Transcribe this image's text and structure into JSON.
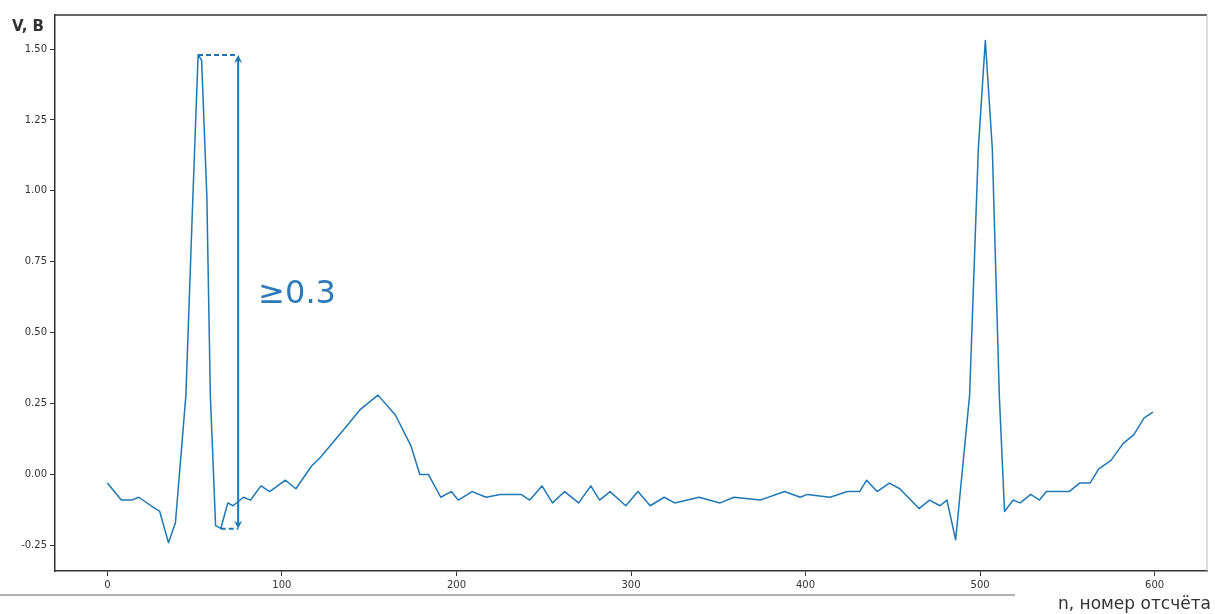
{
  "chart_data": {
    "type": "line",
    "xlabel": "n, номер отсчёта",
    "ylabel": "V, В",
    "xlim": [
      -30,
      630
    ],
    "xticks": [
      0,
      100,
      200,
      300,
      400,
      500,
      600
    ],
    "ylim": [
      -0.34,
      1.62
    ],
    "yticks": [
      {
        "value": -0.25,
        "label": "-0.25"
      },
      {
        "value": 0,
        "label": "0.00"
      },
      {
        "value": 0.25,
        "label": "0.25"
      },
      {
        "value": 0.5,
        "label": "0.50"
      },
      {
        "value": 0.75,
        "label": "0.75"
      },
      {
        "value": 1,
        "label": "1.00"
      },
      {
        "value": 1.25,
        "label": "1.25"
      },
      {
        "value": 1.5,
        "label": "1.50"
      }
    ],
    "marker": "none",
    "line_style": "solid",
    "legend": false,
    "annotations": [
      "≥0.3"
    ],
    "series": [
      {
        "color": "#1f77b4",
        "x": [
          0,
          8,
          14,
          18,
          25,
          30,
          35,
          39,
          45,
          49,
          52,
          54,
          57,
          59,
          62,
          65,
          69,
          72,
          78,
          82,
          88,
          93,
          102,
          108,
          117,
          122,
          137,
          145,
          155,
          165,
          174,
          179,
          184,
          191,
          197,
          201,
          209,
          217,
          225,
          237,
          242,
          249,
          255,
          262,
          270,
          277,
          282,
          288,
          297,
          304,
          311,
          319,
          325,
          339,
          351,
          359,
          374,
          388,
          397,
          401,
          414,
          424,
          431,
          435,
          441,
          448,
          454,
          465,
          471,
          477,
          481,
          486,
          494,
          499,
          503,
          507,
          511,
          514,
          519,
          523,
          529,
          534,
          538,
          551,
          557,
          563,
          568,
          575,
          582,
          588,
          594,
          599
        ],
        "values": [
          -0.03,
          -0.09,
          -0.09,
          -0.08,
          -0.11,
          -0.13,
          -0.24,
          -0.17,
          0.28,
          0.98,
          1.48,
          1.46,
          0.98,
          0.28,
          -0.18,
          -0.19,
          -0.1,
          -0.11,
          -0.08,
          -0.09,
          -0.04,
          -0.06,
          -0.02,
          -0.05,
          0.03,
          0.06,
          0.17,
          0.23,
          0.28,
          0.21,
          0.1,
          0,
          0,
          -0.08,
          -0.06,
          -0.09,
          -0.06,
          -0.08,
          -0.07,
          -0.07,
          -0.09,
          -0.04,
          -0.1,
          -0.06,
          -0.1,
          -0.04,
          -0.09,
          -0.06,
          -0.11,
          -0.06,
          -0.11,
          -0.08,
          -0.1,
          -0.08,
          -0.1,
          -0.08,
          -0.09,
          -0.06,
          -0.08,
          -0.07,
          -0.08,
          -0.06,
          -0.06,
          -0.02,
          -0.06,
          -0.03,
          -0.05,
          -0.12,
          -0.09,
          -0.11,
          -0.09,
          -0.23,
          0.28,
          1.15,
          1.53,
          1.15,
          0.28,
          -0.13,
          -0.09,
          -0.1,
          -0.07,
          -0.09,
          -0.06,
          -0.06,
          -0.03,
          -0.03,
          0.02,
          0.05,
          0.11,
          0.14,
          0.2,
          0.22
        ]
      }
    ]
  }
}
